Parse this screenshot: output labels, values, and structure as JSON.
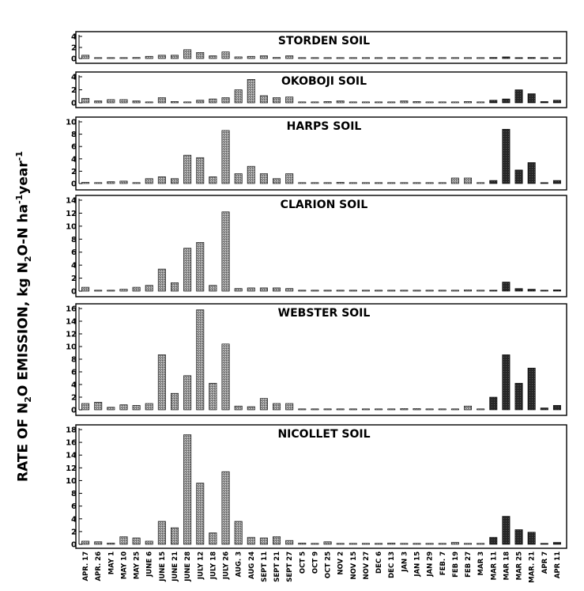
{
  "figure": {
    "ylabel_parts": {
      "a": "RATE OF N",
      "a_sub": "2",
      "b": "O EMISSION, kg N",
      "b_sub": "2",
      "c": "O-N ha",
      "c_sup": "-1",
      "d": "year",
      "d_sup": "-1"
    }
  },
  "chart_data": {
    "type": "bar",
    "ylabel": "RATE OF N2O EMISSION, kg N2O-N ha-1 year-1",
    "categories": [
      "APR. 17",
      "APR. 26",
      "MAY 1",
      "MAY 10",
      "MAY 25",
      "JUNE 6",
      "JUNE 15",
      "JUNE 21",
      "JUNE 28",
      "JULY 12",
      "JULY 18",
      "JULY 26",
      "AUG. 3",
      "AUG 24",
      "SEPT 11",
      "SEPT 21",
      "SEPT 27",
      "OCT 5",
      "OCT 9",
      "OCT 25",
      "NOV 2",
      "NOV 15",
      "NOV 27",
      "DEC 6",
      "DEC 13",
      "JAN 3",
      "JAN 15",
      "JAN 29",
      "FEB. 7",
      "FEB 19",
      "FEB 27",
      "MAR 3",
      "MAR 11",
      "MAR 18",
      "MAR 25",
      "MAR. 21",
      "APR 7",
      "APR 11"
    ],
    "panels": [
      {
        "name": "STORDEN SOIL",
        "ylim": [
          0,
          4
        ],
        "yticks": [
          0,
          2,
          4
        ],
        "values": [
          0.6,
          0.1,
          0.1,
          0.1,
          0.2,
          0.4,
          0.6,
          0.6,
          1.6,
          1.1,
          0.5,
          1.2,
          0.3,
          0.4,
          0.5,
          0.2,
          0.5,
          0.1,
          0.1,
          0.1,
          0.1,
          0.05,
          0.1,
          0.1,
          0.05,
          0.05,
          0.05,
          0.05,
          0.05,
          0.05,
          0.05,
          0.05,
          0.2,
          0.3,
          0.05,
          0.2,
          0.1,
          0.05
        ]
      },
      {
        "name": "OKOBOJI SOIL",
        "ylim": [
          0,
          4
        ],
        "yticks": [
          0,
          2,
          4
        ],
        "values": [
          0.7,
          0.3,
          0.5,
          0.5,
          0.3,
          0.1,
          0.8,
          0.2,
          0.1,
          0.4,
          0.6,
          0.8,
          2.0,
          3.6,
          1.1,
          0.8,
          0.9,
          0.1,
          0.1,
          0.2,
          0.3,
          0.1,
          0.1,
          0.1,
          0.1,
          0.3,
          0.2,
          0.1,
          0.1,
          0.1,
          0.2,
          0.1,
          0.4,
          0.6,
          2.0,
          1.4,
          0.2,
          0.4
        ]
      },
      {
        "name": "HARPS SOIL",
        "ylim": [
          0,
          10
        ],
        "yticks": [
          0,
          2,
          4,
          6,
          8,
          10
        ],
        "values": [
          0.2,
          0.1,
          0.3,
          0.4,
          0.1,
          0.8,
          1.1,
          0.8,
          4.6,
          4.2,
          1.1,
          8.6,
          1.6,
          2.8,
          1.6,
          0.8,
          1.6,
          0.1,
          0.1,
          0.1,
          0.2,
          0.1,
          0.1,
          0.1,
          0.1,
          0.1,
          0.1,
          0.1,
          0.1,
          0.9,
          0.9,
          0.1,
          0.5,
          8.8,
          2.2,
          3.4,
          0.1,
          0.5
        ]
      },
      {
        "name": "CLARION SOIL",
        "ylim": [
          0,
          14
        ],
        "yticks": [
          0,
          2,
          4,
          6,
          8,
          10,
          12,
          14
        ],
        "values": [
          0.6,
          0.1,
          0.1,
          0.3,
          0.6,
          0.9,
          3.4,
          1.3,
          6.6,
          7.5,
          0.9,
          12.2,
          0.4,
          0.5,
          0.5,
          0.5,
          0.4,
          0.1,
          0.1,
          0.1,
          0.1,
          0.1,
          0.1,
          0.1,
          0.1,
          0.1,
          0.1,
          0.1,
          0.1,
          0.1,
          0.2,
          0.1,
          0.1,
          1.4,
          0.4,
          0.3,
          0.1,
          0.2
        ]
      },
      {
        "name": "WEBSTER SOIL",
        "ylim": [
          0,
          16
        ],
        "yticks": [
          0,
          2,
          4,
          6,
          8,
          10,
          12,
          14,
          16
        ],
        "values": [
          1.0,
          1.2,
          0.4,
          0.8,
          0.7,
          1.0,
          8.7,
          2.6,
          5.4,
          15.8,
          4.2,
          10.4,
          0.6,
          0.5,
          1.8,
          1.0,
          1.0,
          0.1,
          0.1,
          0.1,
          0.1,
          0.1,
          0.1,
          0.1,
          0.1,
          0.2,
          0.2,
          0.1,
          0.1,
          0.1,
          0.6,
          0.1,
          2.0,
          8.7,
          4.2,
          6.6,
          0.3,
          0.7
        ]
      },
      {
        "name": "NICOLLET SOIL",
        "ylim": [
          0,
          18
        ],
        "yticks": [
          0,
          2,
          4,
          6,
          8,
          10,
          12,
          14,
          16,
          18
        ],
        "values": [
          0.5,
          0.4,
          0.2,
          1.2,
          1.0,
          0.5,
          3.6,
          2.6,
          17.2,
          9.6,
          1.8,
          11.4,
          3.6,
          1.1,
          1.0,
          1.2,
          0.6,
          0.2,
          0.1,
          0.4,
          0.1,
          0.1,
          0.1,
          0.1,
          0.2,
          0.1,
          0.1,
          0.1,
          0.1,
          0.3,
          0.1,
          0.1,
          1.1,
          4.4,
          2.3,
          1.9,
          0.1,
          0.3
        ]
      }
    ]
  }
}
